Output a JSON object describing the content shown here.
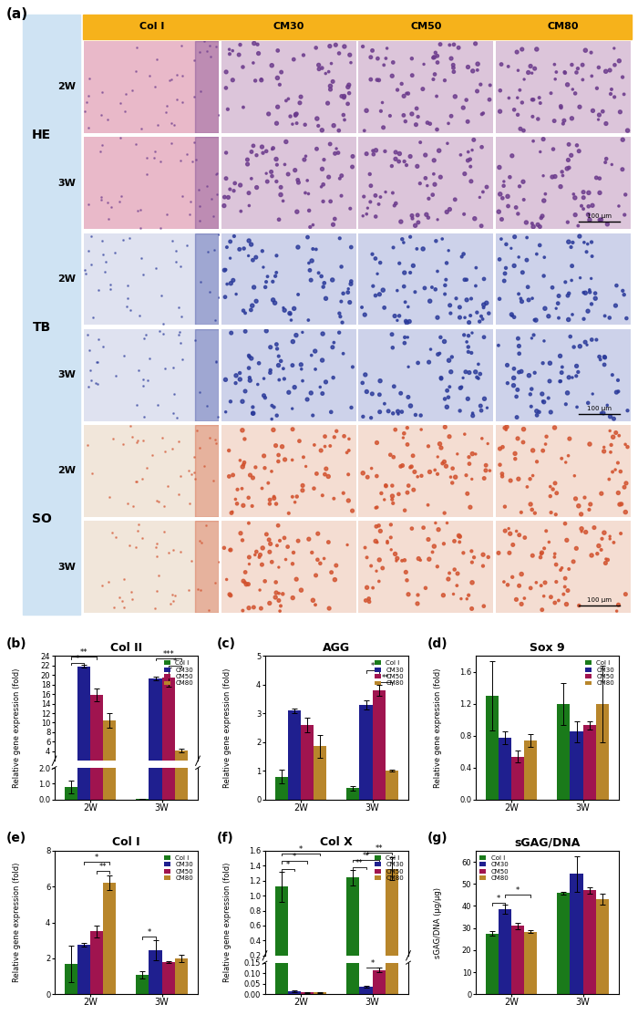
{
  "figure_a": {
    "panel": "(a)",
    "columns": [
      "Col I",
      "CM30",
      "CM50",
      "CM80"
    ],
    "stains": [
      {
        "name": "HE",
        "rows": [
          "2W",
          "3W"
        ]
      },
      {
        "name": "TB",
        "rows": [
          "2W",
          "3W"
        ]
      },
      {
        "name": "SO",
        "rows": [
          "2W",
          "3W"
        ]
      }
    ],
    "scale_bar": "100 μm"
  },
  "chart_data": [
    {
      "type": "bar",
      "panel": "(b)",
      "title": "Col II",
      "ylabel": "Relative gene expression (fold)",
      "categories": [
        "2W",
        "3W"
      ],
      "series": [
        {
          "name": "Col I",
          "color": "#1a7a1a",
          "values": [
            0.8,
            0.05
          ],
          "errors": [
            0.4,
            0.02
          ]
        },
        {
          "name": "CM30",
          "color": "#1f1f8f",
          "values": [
            21.8,
            19.3
          ],
          "errors": [
            0.3,
            0.4
          ]
        },
        {
          "name": "CM50",
          "color": "#a0144f",
          "values": [
            15.8,
            19.5
          ],
          "errors": [
            1.3,
            2.0
          ]
        },
        {
          "name": "CM80",
          "color": "#b8862b",
          "values": [
            10.5,
            4.2
          ],
          "errors": [
            1.5,
            0.4
          ]
        }
      ],
      "ylim": [
        [
          0,
          2
        ],
        [
          2,
          24
        ]
      ],
      "yticks": [
        [
          {
            "value": 0,
            "label": "0.0"
          },
          {
            "value": 1,
            "label": "1.0"
          },
          {
            "value": 2,
            "label": "2.0"
          }
        ],
        [
          4,
          6,
          8,
          10,
          12,
          14,
          16,
          18,
          20,
          22,
          24
        ]
      ],
      "legend": "upper right",
      "significance": [
        {
          "category": "2W",
          "from": "Col I",
          "to": "CM30",
          "label": "*",
          "y": 22.6
        },
        {
          "category": "2W",
          "from": "Col I",
          "to": "CM50",
          "label": "**",
          "y": 23.8
        },
        {
          "category": "3W",
          "from": "CM50",
          "to": "CM80",
          "label": "*",
          "y": 22.0
        },
        {
          "category": "3W",
          "from": "CM30",
          "to": "CM80",
          "label": "***",
          "y": 23.5
        }
      ]
    },
    {
      "type": "bar",
      "panel": "(c)",
      "title": "AGG",
      "ylabel": "Relative gene expression (fold)",
      "categories": [
        "2W",
        "3W"
      ],
      "series": [
        {
          "name": "Col I",
          "color": "#1a7a1a",
          "values": [
            0.8,
            0.4
          ],
          "errors": [
            0.25,
            0.08
          ]
        },
        {
          "name": "CM30",
          "color": "#1f1f8f",
          "values": [
            3.1,
            3.3
          ],
          "errors": [
            0.08,
            0.15
          ]
        },
        {
          "name": "CM50",
          "color": "#a0144f",
          "values": [
            2.6,
            3.8
          ],
          "errors": [
            0.25,
            0.2
          ]
        },
        {
          "name": "CM80",
          "color": "#b8862b",
          "values": [
            1.85,
            1.0
          ],
          "errors": [
            0.4,
            0.03
          ]
        }
      ],
      "ylim": [
        0,
        5
      ],
      "yticks": [
        0,
        1,
        2,
        3,
        4,
        5
      ],
      "legend": "upper right",
      "significance": [
        {
          "category": "3W",
          "from": "CM50",
          "to": "CM80",
          "label": "**",
          "y": 4.1
        },
        {
          "category": "3W",
          "from": "CM30",
          "to": "CM50",
          "label": "*",
          "y": 4.5
        }
      ]
    },
    {
      "type": "bar",
      "panel": "(d)",
      "title": "Sox 9",
      "ylabel": "Relative gene expression (fold)",
      "categories": [
        "2W",
        "3W"
      ],
      "series": [
        {
          "name": "Col I",
          "color": "#1a7a1a",
          "values": [
            1.3,
            1.2
          ],
          "errors": [
            0.43,
            0.26
          ]
        },
        {
          "name": "CM30",
          "color": "#1f1f8f",
          "values": [
            0.77,
            0.85
          ],
          "errors": [
            0.08,
            0.13
          ]
        },
        {
          "name": "CM50",
          "color": "#a0144f",
          "values": [
            0.54,
            0.93
          ],
          "errors": [
            0.07,
            0.05
          ]
        },
        {
          "name": "CM80",
          "color": "#b8862b",
          "values": [
            0.74,
            1.2
          ],
          "errors": [
            0.08,
            0.48
          ]
        }
      ],
      "ylim": [
        0,
        1.8
      ],
      "yticks": [
        0.0,
        0.4,
        0.8,
        1.2,
        1.6
      ],
      "legend": "upper right",
      "significance": []
    },
    {
      "type": "bar",
      "panel": "(e)",
      "title": "Col I",
      "ylabel": "Relative gene expression (fold)",
      "categories": [
        "2W",
        "3W"
      ],
      "series": [
        {
          "name": "Col I",
          "color": "#1a7a1a",
          "values": [
            1.7,
            1.1
          ],
          "errors": [
            1.0,
            0.2
          ]
        },
        {
          "name": "CM30",
          "color": "#1f1f8f",
          "values": [
            2.75,
            2.45
          ],
          "errors": [
            0.1,
            0.55
          ]
        },
        {
          "name": "CM50",
          "color": "#a0144f",
          "values": [
            3.5,
            1.8
          ],
          "errors": [
            0.35,
            0.05
          ]
        },
        {
          "name": "CM80",
          "color": "#b8862b",
          "values": [
            6.2,
            2.0
          ],
          "errors": [
            0.4,
            0.2
          ]
        }
      ],
      "ylim": [
        0,
        8
      ],
      "yticks": [
        0,
        2,
        4,
        6,
        8
      ],
      "legend": "upper right",
      "significance": [
        {
          "category": "2W",
          "from": "CM50",
          "to": "CM80",
          "label": "**",
          "y": 6.9
        },
        {
          "category": "2W",
          "from": "CM30",
          "to": "CM80",
          "label": "*",
          "y": 7.4
        },
        {
          "category": "3W",
          "from": "Col I",
          "to": "CM30",
          "label": "*",
          "y": 3.2
        }
      ]
    },
    {
      "type": "bar",
      "panel": "(f)",
      "title": "Col X",
      "ylabel": "Relative gene expression (fold)",
      "categories": [
        "2W",
        "3W"
      ],
      "series": [
        {
          "name": "Col I",
          "color": "#1a7a1a",
          "values": [
            1.12,
            1.24
          ],
          "errors": [
            0.2,
            0.1
          ]
        },
        {
          "name": "CM30",
          "color": "#1f1f8f",
          "values": [
            0.015,
            0.035
          ],
          "errors": [
            0.005,
            0.005
          ]
        },
        {
          "name": "CM50",
          "color": "#a0144f",
          "values": [
            0.008,
            0.115
          ],
          "errors": [
            0.001,
            0.01
          ]
        },
        {
          "name": "CM80",
          "color": "#b8862b",
          "values": [
            0.008,
            1.36
          ],
          "errors": [
            0.001,
            0.15
          ]
        }
      ],
      "ylim": [
        [
          0,
          0.15
        ],
        [
          0.2,
          1.6
        ]
      ],
      "yticks": [
        [
          {
            "value": 0,
            "label": "0.00"
          },
          {
            "value": 0.05,
            "label": "0.05"
          },
          {
            "value": 0.1,
            "label": "0.10"
          },
          {
            "value": 0.15,
            "label": "0.15"
          }
        ],
        [
          0.2,
          0.4,
          0.6,
          0.8,
          1.0,
          1.2,
          1.4,
          1.6
        ]
      ],
      "legend": "upper right",
      "significance": [
        {
          "category": "2W",
          "from": "Col I",
          "to": "CM30",
          "label": "*",
          "y": 1.36
        },
        {
          "category": "2W",
          "from": "Col I",
          "to": "CM50",
          "label": "*",
          "y": 1.46
        },
        {
          "category": "2W",
          "from": "Col I",
          "to": "CM80",
          "label": "*",
          "y": 1.56
        },
        {
          "category": "3W",
          "from": "Col I",
          "to": "CM30",
          "label": "**",
          "y": 1.38
        },
        {
          "category": "3W",
          "from": "Col I",
          "to": "CM50",
          "label": "**",
          "y": 1.48
        },
        {
          "category": "3W",
          "from": "CM30",
          "to": "CM80",
          "label": "**",
          "y": 1.58
        },
        {
          "category": "3W",
          "from": "CM30",
          "to": "CM50",
          "label": "*",
          "y": 0.128
        }
      ]
    },
    {
      "type": "bar",
      "panel": "(g)",
      "title": "sGAG/DNA",
      "ylabel": "sGAG/DNA (μg/μg)",
      "categories": [
        "2W",
        "3W"
      ],
      "series": [
        {
          "name": "Col I",
          "color": "#1a7a1a",
          "values": [
            27.5,
            45.8
          ],
          "errors": [
            1.0,
            0.5
          ]
        },
        {
          "name": "CM30",
          "color": "#1f1f8f",
          "values": [
            38.5,
            54.5
          ],
          "errors": [
            2.0,
            8.0
          ]
        },
        {
          "name": "CM50",
          "color": "#a0144f",
          "values": [
            31.0,
            47.0
          ],
          "errors": [
            1.5,
            1.3
          ]
        },
        {
          "name": "CM80",
          "color": "#b8862b",
          "values": [
            28.3,
            43.0
          ],
          "errors": [
            0.6,
            2.5
          ]
        }
      ],
      "ylim": [
        0,
        65
      ],
      "yticks": [
        0,
        10,
        20,
        30,
        40,
        50,
        60
      ],
      "legend": "upper left",
      "significance": [
        {
          "category": "2W",
          "from": "Col I",
          "to": "CM30",
          "label": "*",
          "y": 41.5
        },
        {
          "category": "2W",
          "from": "CM30",
          "to": "CM80",
          "label": "*",
          "y": 45.0
        }
      ]
    }
  ]
}
